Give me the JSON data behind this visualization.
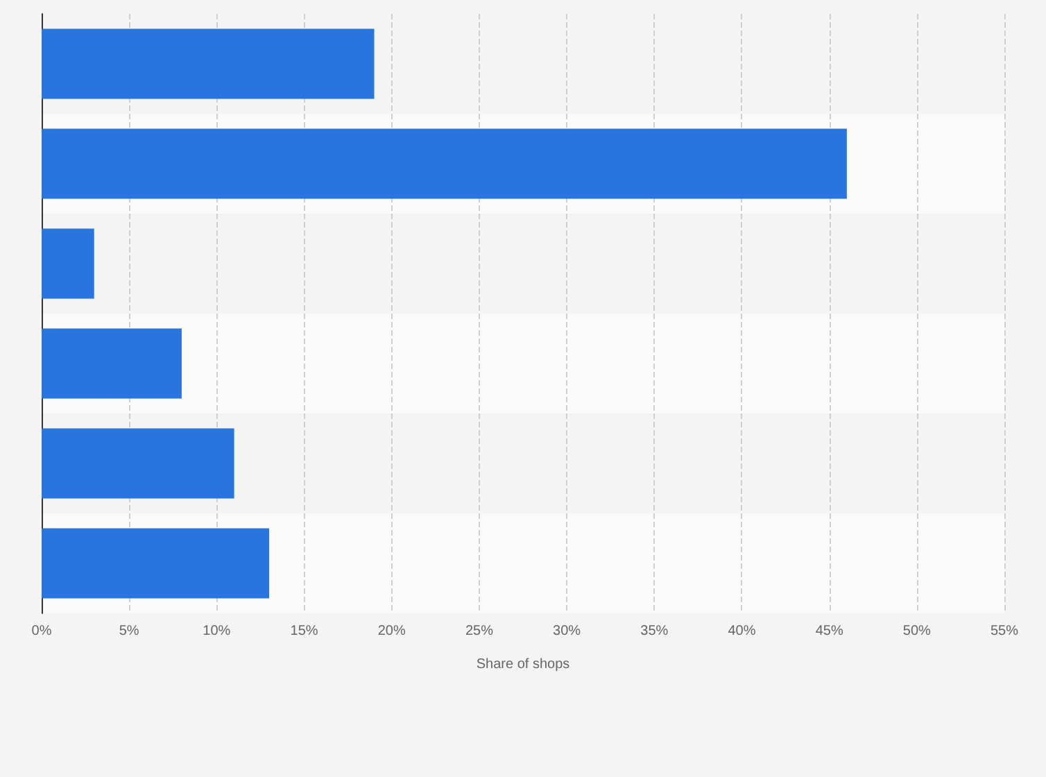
{
  "chart_data": {
    "type": "bar",
    "orientation": "horizontal",
    "xlabel": "Share of shops",
    "categories": [
      null,
      null,
      null,
      null,
      null,
      null
    ],
    "values": [
      19,
      46,
      3,
      8,
      11,
      13
    ],
    "color": "#2876dd",
    "xlim": [
      0,
      55
    ],
    "xticks": [
      {
        "value": 0,
        "label": "0%"
      },
      {
        "value": 5,
        "label": "5%"
      },
      {
        "value": 10,
        "label": "10%"
      },
      {
        "value": 15,
        "label": "15%"
      },
      {
        "value": 20,
        "label": "20%"
      },
      {
        "value": 25,
        "label": "25%"
      },
      {
        "value": 30,
        "label": "30%"
      },
      {
        "value": 35,
        "label": "35%"
      },
      {
        "value": 40,
        "label": "40%"
      },
      {
        "value": 45,
        "label": "45%"
      },
      {
        "value": 50,
        "label": "50%"
      },
      {
        "value": 55,
        "label": "55%"
      }
    ],
    "grid": "x",
    "tick_labels": "x"
  }
}
